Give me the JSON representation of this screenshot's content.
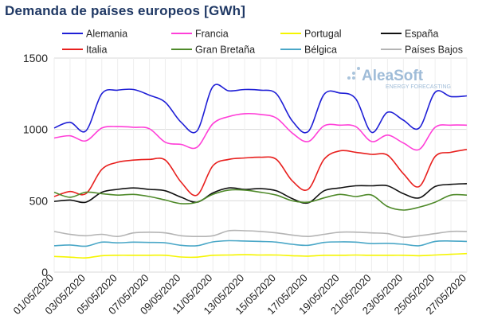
{
  "chart_data": {
    "type": "line",
    "title": "Demanda de países europeos [GWh]",
    "xlabel": "",
    "ylabel": "",
    "ylim": [
      0,
      1500
    ],
    "yticks": [
      0,
      500,
      1000,
      1500
    ],
    "grid": true,
    "legend_position": "top",
    "x": [
      "01/05/2020",
      "02/05/2020",
      "03/05/2020",
      "04/05/2020",
      "05/05/2020",
      "06/05/2020",
      "07/05/2020",
      "08/05/2020",
      "09/05/2020",
      "10/05/2020",
      "11/05/2020",
      "12/05/2020",
      "13/05/2020",
      "14/05/2020",
      "15/05/2020",
      "16/05/2020",
      "17/05/2020",
      "18/05/2020",
      "19/05/2020",
      "20/05/2020",
      "21/05/2020",
      "22/05/2020",
      "23/05/2020",
      "24/05/2020",
      "25/05/2020",
      "26/05/2020",
      "27/05/2020"
    ],
    "xticks": [
      "01/05/2020",
      "03/05/2020",
      "05/05/2020",
      "07/05/2020",
      "09/05/2020",
      "11/05/2020",
      "13/05/2020",
      "15/05/2020",
      "17/05/2020",
      "19/05/2020",
      "21/05/2020",
      "23/05/2020",
      "25/05/2020",
      "27/05/2020"
    ],
    "series": [
      {
        "name": "Alemania",
        "color": "#1f1fd6",
        "values": [
          1010,
          1050,
          990,
          1250,
          1275,
          1280,
          1240,
          1190,
          1050,
          990,
          1300,
          1270,
          1280,
          1275,
          1250,
          1060,
          985,
          1245,
          1255,
          1215,
          980,
          1120,
          1065,
          1010,
          1260,
          1230,
          1235
        ]
      },
      {
        "name": "Francia",
        "color": "#ff3fd8",
        "values": [
          940,
          955,
          920,
          1010,
          1020,
          1015,
          1005,
          910,
          895,
          875,
          1040,
          1090,
          1110,
          1105,
          1080,
          975,
          915,
          1025,
          1030,
          1020,
          915,
          960,
          905,
          860,
          1015,
          1030,
          1030
        ]
      },
      {
        "name": "Portugal",
        "color": "#f5f500",
        "values": [
          110,
          105,
          100,
          115,
          118,
          118,
          118,
          118,
          106,
          105,
          118,
          120,
          122,
          120,
          120,
          115,
          112,
          118,
          118,
          120,
          118,
          118,
          118,
          115,
          120,
          125,
          130
        ]
      },
      {
        "name": "España",
        "color": "#111111",
        "values": [
          495,
          505,
          490,
          560,
          580,
          590,
          580,
          570,
          525,
          490,
          555,
          590,
          580,
          585,
          570,
          515,
          485,
          570,
          590,
          605,
          605,
          605,
          550,
          520,
          600,
          615,
          620
        ]
      },
      {
        "name": "Italia",
        "color": "#e8201e",
        "values": [
          530,
          565,
          550,
          720,
          770,
          785,
          790,
          785,
          630,
          540,
          745,
          790,
          800,
          805,
          790,
          640,
          580,
          790,
          850,
          840,
          825,
          820,
          690,
          600,
          810,
          840,
          860
        ]
      },
      {
        "name": "Gran Bretaña",
        "color": "#4f8a2a",
        "values": [
          560,
          525,
          560,
          550,
          540,
          545,
          530,
          505,
          480,
          490,
          545,
          575,
          575,
          560,
          540,
          500,
          490,
          520,
          545,
          530,
          540,
          460,
          435,
          455,
          490,
          540,
          540
        ]
      },
      {
        "name": "Bélgica",
        "color": "#4aa7c7",
        "values": [
          185,
          190,
          182,
          210,
          205,
          210,
          208,
          205,
          188,
          185,
          212,
          220,
          218,
          215,
          210,
          195,
          188,
          208,
          212,
          210,
          200,
          202,
          195,
          185,
          215,
          218,
          215
        ]
      },
      {
        "name": "Países Bajos",
        "color": "#b4b4b4",
        "values": [
          285,
          265,
          255,
          265,
          250,
          275,
          280,
          275,
          255,
          250,
          255,
          290,
          290,
          285,
          275,
          260,
          250,
          265,
          280,
          280,
          275,
          270,
          245,
          255,
          270,
          285,
          285
        ]
      }
    ]
  },
  "logo": {
    "name": "AleaSoft",
    "tagline": "ENERGY FORECASTING"
  }
}
